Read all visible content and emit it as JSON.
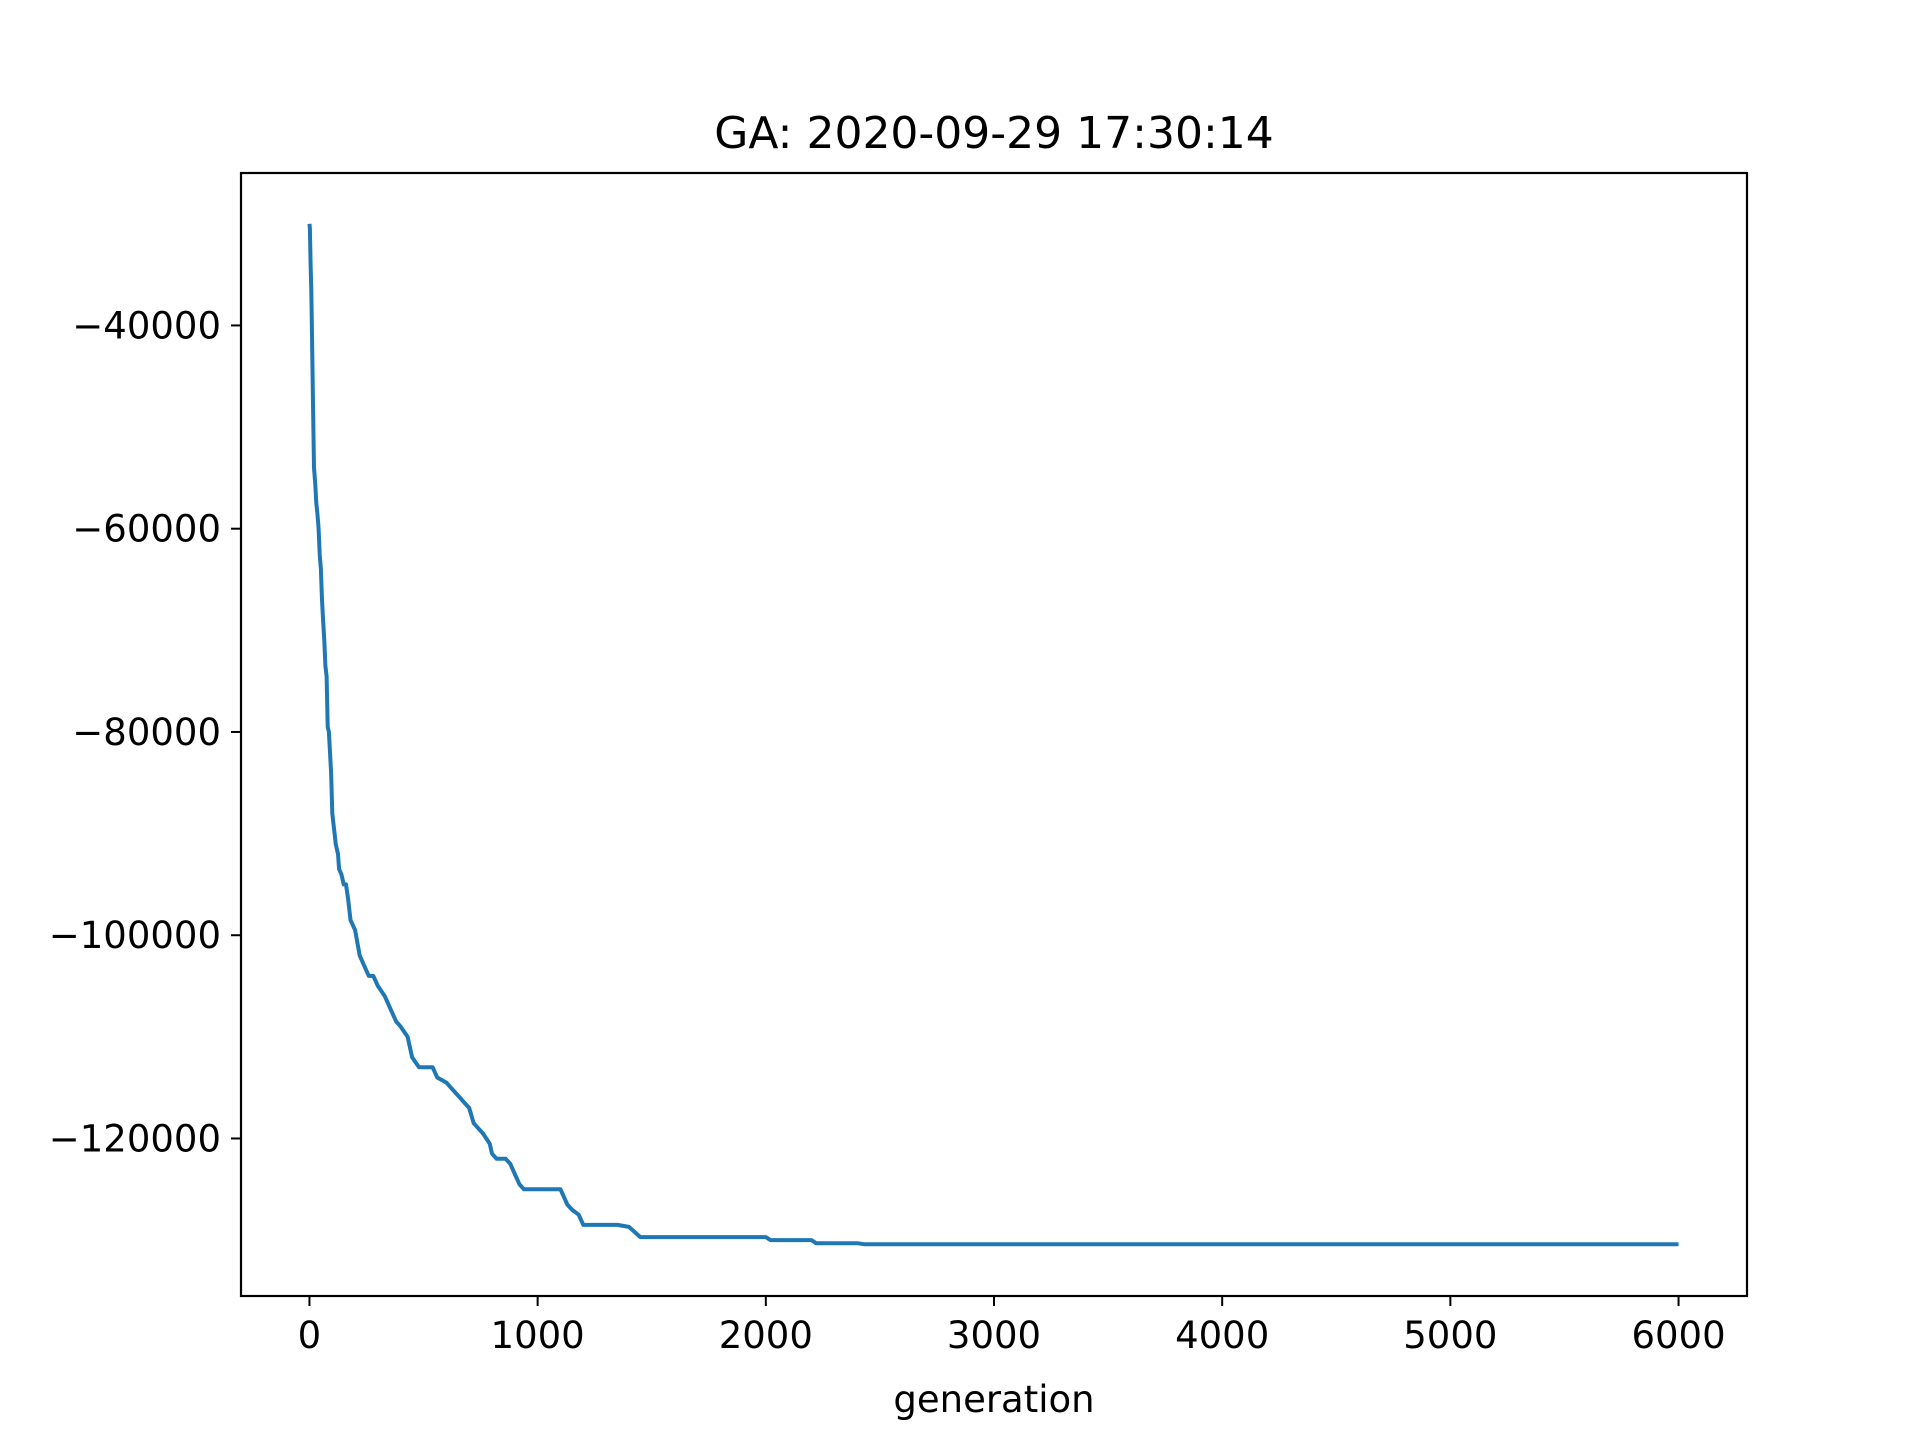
{
  "chart_data": {
    "type": "line",
    "title": "GA: 2020-09-29 17:30:14",
    "xlabel": "generation",
    "ylabel": "",
    "xlim": [
      -300,
      6300
    ],
    "ylim": [
      -135500,
      -25000
    ],
    "xticks": [
      0,
      1000,
      2000,
      3000,
      4000,
      5000,
      6000
    ],
    "xtick_labels": [
      "0",
      "1000",
      "2000",
      "3000",
      "4000",
      "5000",
      "6000"
    ],
    "yticks": [
      -40000,
      -60000,
      -80000,
      -100000,
      -120000
    ],
    "ytick_labels": [
      "−40000",
      "−60000",
      "−80000",
      "−100000",
      "−120000"
    ],
    "grid": false,
    "legend": "none",
    "series_color": "#1f77b4",
    "series": [
      {
        "x": [
          0,
          2,
          5,
          8,
          10,
          15,
          20,
          25,
          30,
          35,
          40,
          45,
          50,
          55,
          60,
          65,
          70,
          75,
          80,
          85,
          90,
          95,
          100,
          105,
          110,
          115,
          120,
          125,
          130,
          140,
          150,
          160,
          170,
          180,
          200,
          220,
          240,
          260,
          280,
          300,
          330,
          360,
          380,
          400,
          430,
          450,
          480,
          500,
          540,
          560,
          600,
          620,
          660,
          680,
          700,
          720,
          740,
          760,
          790,
          800,
          820,
          860,
          880,
          900,
          920,
          940,
          960,
          1000,
          1050,
          1100,
          1130,
          1150,
          1180,
          1200,
          1250,
          1300,
          1350,
          1400,
          1430,
          1450,
          1500,
          1600,
          1800,
          2000,
          2020,
          2100,
          2200,
          2220,
          2300,
          2400,
          2430,
          3000,
          4000,
          5000,
          6000
        ],
        "y": [
          -30000,
          -30500,
          -34000,
          -36500,
          -39000,
          -47000,
          -54000,
          -55500,
          -57500,
          -58500,
          -60000,
          -62500,
          -64000,
          -67000,
          -69000,
          -71000,
          -73500,
          -74500,
          -79500,
          -80000,
          -82000,
          -84000,
          -88000,
          -89000,
          -90000,
          -91000,
          -91500,
          -92000,
          -93500,
          -94000,
          -95000,
          -95000,
          -96500,
          -98500,
          -99500,
          -102000,
          -103000,
          -104000,
          -104000,
          -105000,
          -106000,
          -107500,
          -108500,
          -109000,
          -110000,
          -112000,
          -113000,
          -113000,
          -113000,
          -114000,
          -114500,
          -115000,
          -116000,
          -116500,
          -117000,
          -118500,
          -119000,
          -119500,
          -120500,
          -121500,
          -122000,
          -122000,
          -122500,
          -123500,
          -124500,
          -125000,
          -125000,
          -125000,
          -125000,
          -125000,
          -126500,
          -127000,
          -127500,
          -128500,
          -128500,
          -128500,
          -128500,
          -128700,
          -129300,
          -129700,
          -129700,
          -129700,
          -129700,
          -129700,
          -130000,
          -130000,
          -130000,
          -130300,
          -130300,
          -130300,
          -130400,
          -130400,
          -130400,
          -130400,
          -130400
        ]
      }
    ]
  }
}
